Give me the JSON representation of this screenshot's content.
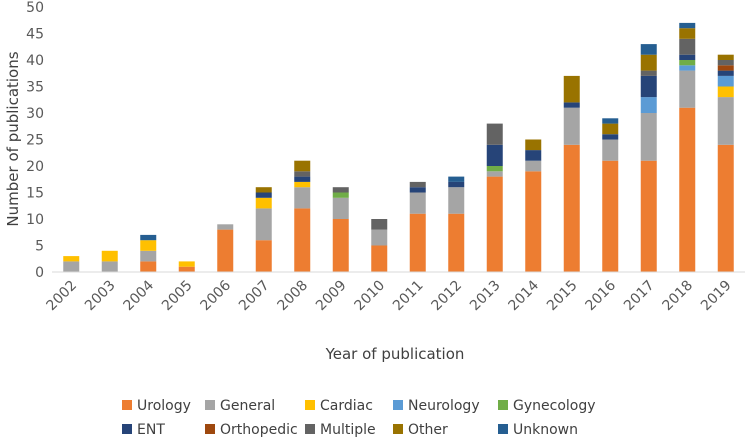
{
  "chart_data": {
    "type": "bar",
    "stacked": true,
    "title": "",
    "xlabel": "Year of publication",
    "ylabel": "Number of publications",
    "ylim": [
      0,
      50
    ],
    "yticks": [
      0,
      5,
      10,
      15,
      20,
      25,
      30,
      35,
      40,
      45,
      50
    ],
    "grid": false,
    "legend_position": "bottom",
    "categories": [
      "2002",
      "2003",
      "2004",
      "2005",
      "2006",
      "2007",
      "2008",
      "2009",
      "2010",
      "2011",
      "2012",
      "2013",
      "2014",
      "2015",
      "2016",
      "2017",
      "2018",
      "2019"
    ],
    "series": [
      {
        "name": "Urology",
        "color": "#ED7D31",
        "values": [
          0,
          0,
          2,
          1,
          8,
          6,
          12,
          10,
          5,
          11,
          11,
          18,
          19,
          24,
          21,
          21,
          31,
          24
        ]
      },
      {
        "name": "General",
        "color": "#A5A5A5",
        "values": [
          2,
          2,
          2,
          0,
          1,
          6,
          4,
          4,
          3,
          4,
          5,
          1,
          2,
          7,
          4,
          9,
          7,
          9
        ]
      },
      {
        "name": "Cardiac",
        "color": "#FFC000",
        "values": [
          1,
          2,
          2,
          1,
          0,
          2,
          1,
          0,
          0,
          0,
          0,
          0,
          0,
          0,
          0,
          0,
          0,
          2
        ]
      },
      {
        "name": "Neurology",
        "color": "#5B9BD5",
        "values": [
          0,
          0,
          0,
          0,
          0,
          0,
          0,
          0,
          0,
          0,
          0,
          0,
          0,
          0,
          0,
          3,
          1,
          2
        ]
      },
      {
        "name": "Gynecology",
        "color": "#70AD47",
        "values": [
          0,
          0,
          0,
          0,
          0,
          0,
          0,
          1,
          0,
          0,
          0,
          1,
          0,
          0,
          0,
          0,
          1,
          0
        ]
      },
      {
        "name": "ENT",
        "color": "#264478",
        "values": [
          0,
          0,
          0,
          0,
          0,
          1,
          1,
          0,
          0,
          1,
          1,
          4,
          2,
          1,
          1,
          4,
          1,
          1
        ]
      },
      {
        "name": "Orthopedic",
        "color": "#9E480E",
        "values": [
          0,
          0,
          0,
          0,
          0,
          0,
          0,
          0,
          0,
          0,
          0,
          0,
          0,
          0,
          0,
          0,
          0,
          1
        ]
      },
      {
        "name": "Multiple",
        "color": "#636363",
        "values": [
          0,
          0,
          0,
          0,
          0,
          0,
          1,
          1,
          2,
          1,
          0,
          4,
          0,
          0,
          0,
          1,
          3,
          1
        ]
      },
      {
        "name": "Other",
        "color": "#997300",
        "values": [
          0,
          0,
          0,
          0,
          0,
          1,
          2,
          0,
          0,
          0,
          0,
          0,
          2,
          5,
          2,
          3,
          2,
          1
        ]
      },
      {
        "name": "Unknown",
        "color": "#255E91",
        "values": [
          0,
          0,
          1,
          0,
          0,
          0,
          0,
          0,
          0,
          0,
          1,
          0,
          0,
          0,
          1,
          2,
          1,
          0
        ]
      }
    ]
  }
}
